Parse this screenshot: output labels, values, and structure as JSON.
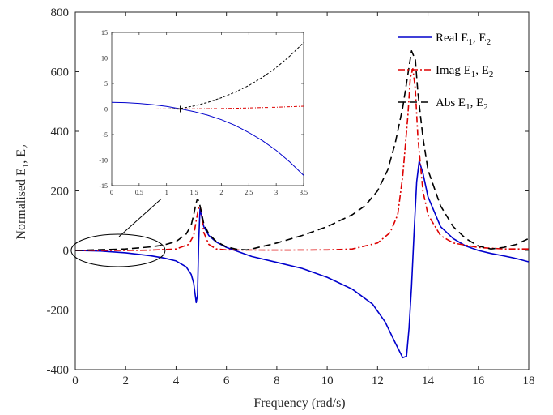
{
  "chart_data": [
    {
      "type": "line",
      "xlabel": "Frequency (rad/s)",
      "ylabel_parts": [
        "Normalised E",
        "1",
        ", E",
        "2"
      ],
      "xlim": [
        0,
        18
      ],
      "ylim": [
        -400,
        800
      ],
      "x_ticks": [
        0,
        2,
        4,
        6,
        8,
        10,
        12,
        14,
        16,
        18
      ],
      "y_ticks": [
        -400,
        -200,
        0,
        200,
        400,
        600,
        800
      ],
      "grid": false,
      "legend": "top-right",
      "series": [
        {
          "name": "Real E1, E2",
          "label_parts": [
            "Real E",
            "1",
            ", E",
            "2"
          ],
          "color": "#0000cc",
          "style": "solid",
          "x": [
            0,
            1,
            2,
            3,
            3.5,
            4,
            4.4,
            4.6,
            4.7,
            4.8,
            4.85,
            4.9,
            4.95,
            5.0,
            5.1,
            5.3,
            5.6,
            6,
            7,
            8,
            9,
            10,
            11,
            11.8,
            12.3,
            12.7,
            13.0,
            13.15,
            13.25,
            13.35,
            13.45,
            13.55,
            13.65,
            13.8,
            14,
            14.5,
            15,
            15.5,
            16,
            16.5,
            17,
            17.5,
            18
          ],
          "y": [
            0,
            -2,
            -8,
            -18,
            -25,
            -35,
            -55,
            -80,
            -110,
            -175,
            -150,
            30,
            140,
            120,
            80,
            50,
            28,
            10,
            -20,
            -40,
            -60,
            -90,
            -130,
            -180,
            -240,
            -310,
            -360,
            -355,
            -260,
            -120,
            60,
            230,
            300,
            260,
            180,
            80,
            40,
            15,
            0,
            -10,
            -18,
            -27,
            -38
          ]
        },
        {
          "name": "Imag E1, E2",
          "label_parts": [
            "Imag E",
            "1",
            ", E",
            "2"
          ],
          "color": "#dd0000",
          "style": "dashdot",
          "x": [
            0,
            2,
            3,
            4,
            4.5,
            4.7,
            4.8,
            4.9,
            4.95,
            5.0,
            5.1,
            5.3,
            5.6,
            6,
            8,
            10,
            11,
            12,
            12.5,
            12.8,
            13.0,
            13.2,
            13.3,
            13.4,
            13.5,
            13.6,
            13.8,
            14,
            14.5,
            15,
            16,
            17,
            18
          ],
          "y": [
            0,
            0,
            1,
            5,
            20,
            50,
            100,
            145,
            150,
            130,
            60,
            20,
            5,
            2,
            1,
            2,
            5,
            25,
            60,
            120,
            250,
            450,
            580,
            610,
            540,
            380,
            200,
            120,
            50,
            25,
            10,
            5,
            5
          ]
        },
        {
          "name": "Abs E1, E2",
          "label_parts": [
            "Abs E",
            "1",
            ", E",
            "2"
          ],
          "color": "#000000",
          "style": "dashed",
          "x": [
            0,
            2,
            3,
            3.5,
            4,
            4.4,
            4.6,
            4.7,
            4.8,
            4.85,
            4.9,
            4.95,
            5.0,
            5.1,
            5.3,
            5.6,
            6,
            6.4,
            6.8,
            7,
            8,
            9,
            10,
            11,
            11.5,
            12,
            12.4,
            12.7,
            13.0,
            13.2,
            13.35,
            13.5,
            13.6,
            13.8,
            14,
            14.5,
            15,
            15.5,
            16,
            16.5,
            17,
            17.5,
            18
          ],
          "y": [
            0,
            5,
            12,
            18,
            30,
            55,
            85,
            120,
            160,
            175,
            165,
            150,
            130,
            90,
            55,
            30,
            12,
            4,
            2,
            5,
            25,
            50,
            80,
            120,
            150,
            200,
            270,
            360,
            480,
            590,
            670,
            640,
            530,
            380,
            270,
            150,
            80,
            40,
            15,
            5,
            10,
            20,
            40
          ]
        }
      ]
    },
    {
      "type": "line",
      "role": "inset",
      "xlim": [
        0,
        3.5
      ],
      "ylim": [
        -15,
        15
      ],
      "x_ticks": [
        0,
        0.5,
        1,
        1.5,
        2,
        2.5,
        3,
        3.5
      ],
      "y_ticks": [
        -15,
        -10,
        -5,
        0,
        5,
        10,
        15
      ],
      "series": [
        {
          "color": "#0000cc",
          "style": "solid",
          "x": [
            0,
            0.25,
            0.5,
            0.75,
            1,
            1.25,
            1.5,
            1.75,
            2,
            2.25,
            2.5,
            2.75,
            3,
            3.25,
            3.5
          ],
          "y": [
            1.3,
            1.25,
            1.1,
            0.85,
            0.5,
            0.05,
            -0.5,
            -1.2,
            -2.1,
            -3.2,
            -4.6,
            -6.2,
            -8.1,
            -10.4,
            -13.0
          ]
        },
        {
          "color": "#dd0000",
          "style": "dashdot",
          "x": [
            0,
            0.5,
            1,
            1.5,
            2,
            2.5,
            3,
            3.5
          ],
          "y": [
            0,
            0,
            0.02,
            0.05,
            0.1,
            0.2,
            0.35,
            0.55
          ]
        },
        {
          "color": "#000000",
          "style": "dashed",
          "x": [
            0,
            0.25,
            0.5,
            0.75,
            1,
            1.25,
            1.5,
            1.75,
            2,
            2.25,
            2.5,
            2.75,
            3,
            3.25,
            3.5
          ],
          "y": [
            0,
            0,
            0,
            0,
            0,
            0.1,
            0.6,
            1.3,
            2.2,
            3.3,
            4.6,
            6.2,
            8.1,
            10.4,
            13.0
          ]
        }
      ]
    }
  ]
}
